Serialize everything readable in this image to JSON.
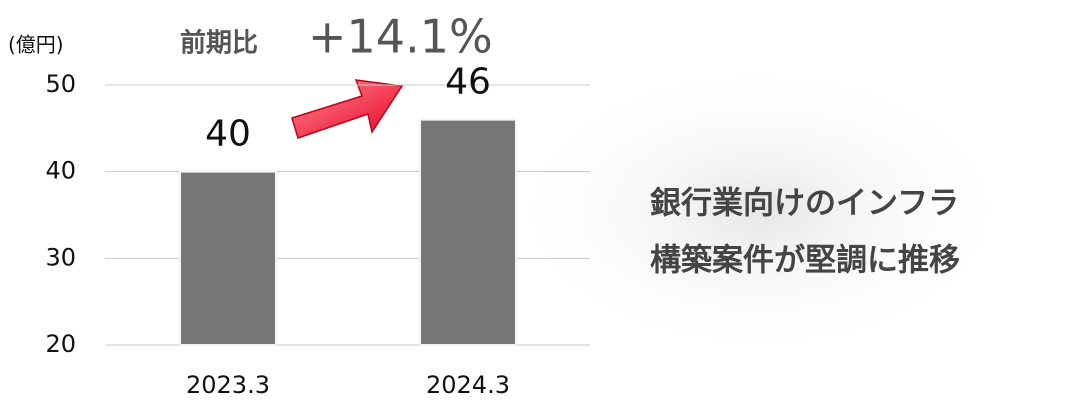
{
  "chart_data": {
    "type": "bar",
    "ylabel": "(億円)",
    "annotations": [
      "前期比",
      "+14.1%"
    ],
    "side_text": [
      "銀行業向けのインフラ",
      "構築案件が堅調に推移"
    ],
    "categories": [
      "2023.3",
      "2024.3"
    ],
    "values": [
      40,
      46
    ],
    "color": "#767676",
    "ylim": [
      20,
      50
    ],
    "yticks": [
      20,
      30,
      40,
      50
    ],
    "grid": true
  }
}
